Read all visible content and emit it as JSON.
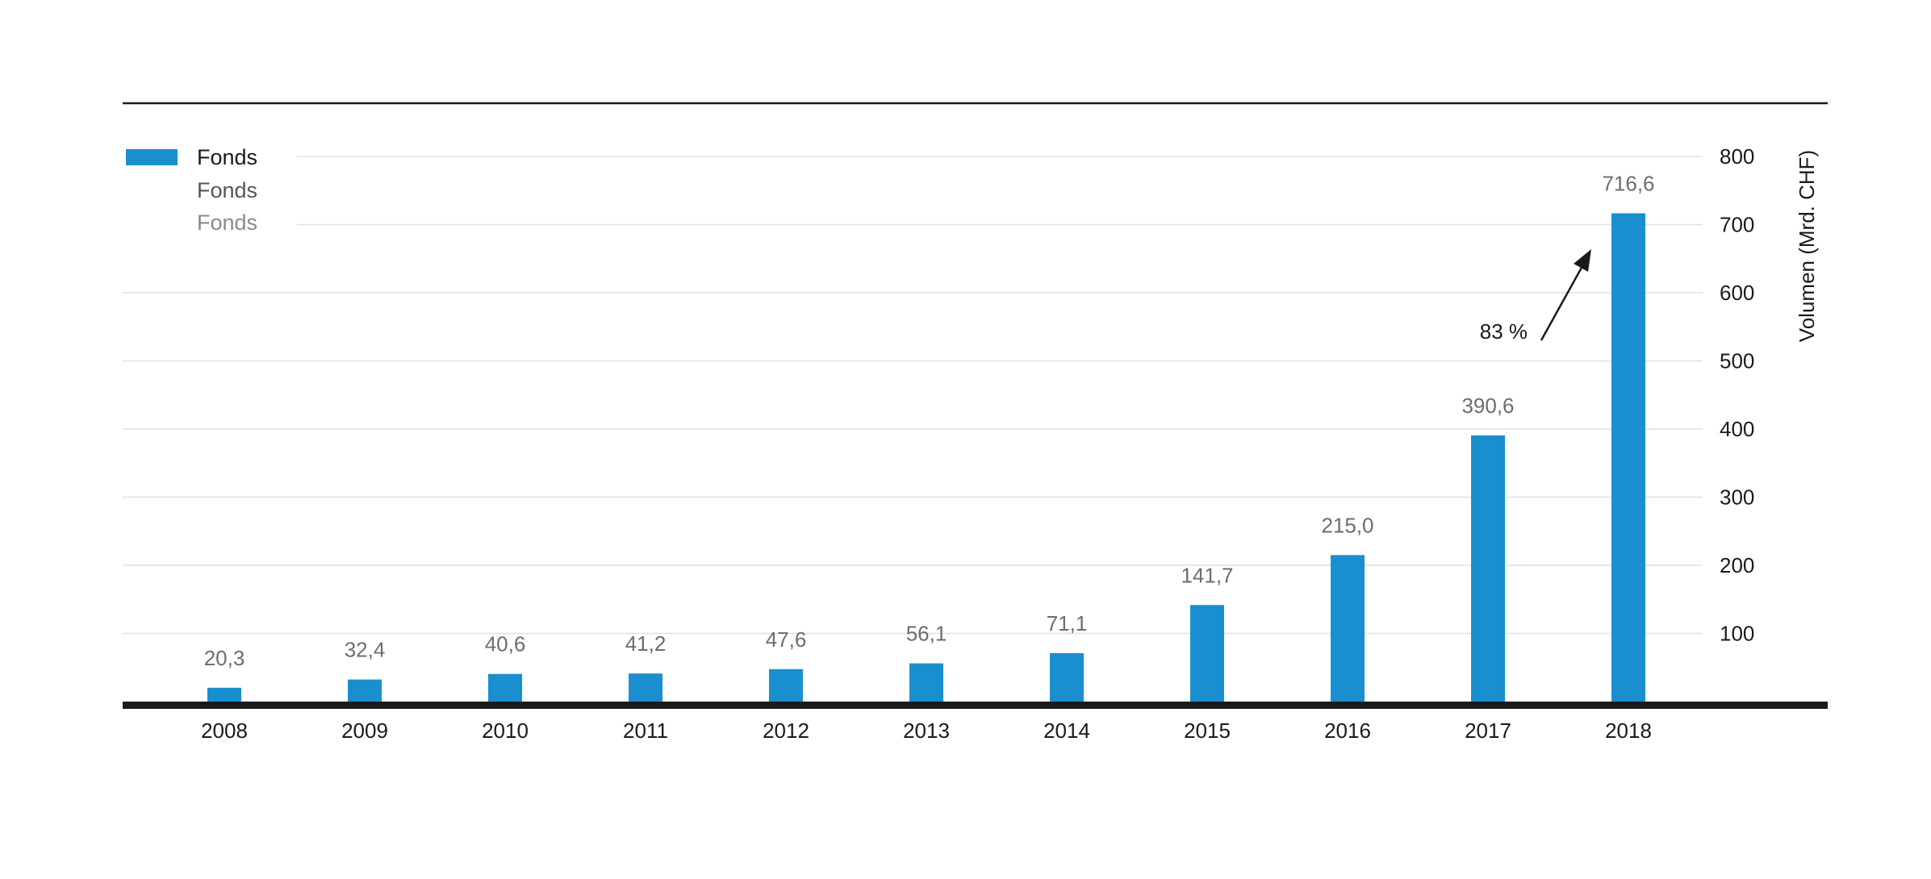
{
  "chart_data": {
    "type": "bar",
    "categories": [
      "2008",
      "2009",
      "2010",
      "2011",
      "2012",
      "2013",
      "2014",
      "2015",
      "2016",
      "2017",
      "2018"
    ],
    "series": [
      {
        "name": "Fonds",
        "values": [
          20.3,
          32.4,
          40.6,
          41.2,
          47.6,
          56.1,
          71.1,
          141.7,
          215.0,
          390.6,
          716.6
        ],
        "value_labels": [
          "20,3",
          "32,4",
          "40,6",
          "41,2",
          "47,6",
          "56,1",
          "71,1",
          "141,7",
          "215,0",
          "390,6",
          "716,6"
        ]
      }
    ],
    "legend": [
      "Fonds",
      "Fonds",
      "Fonds"
    ],
    "legend_position": "top-left",
    "ylabel": "Volumen (Mrd. CHF)",
    "ylim": [
      0,
      800
    ],
    "yticks": [
      100,
      200,
      300,
      400,
      500,
      600,
      700,
      800
    ],
    "y_axis_side": "right",
    "grid": true,
    "annotation": {
      "text": "83 %",
      "from": "2017",
      "to": "2018"
    },
    "colors": {
      "bar": "#1a8fd0",
      "grid": "#e0e0e0",
      "baseline": "#1a1a1a",
      "legend_secondary": "#555555",
      "legend_tertiary": "#8a8a8a"
    }
  }
}
